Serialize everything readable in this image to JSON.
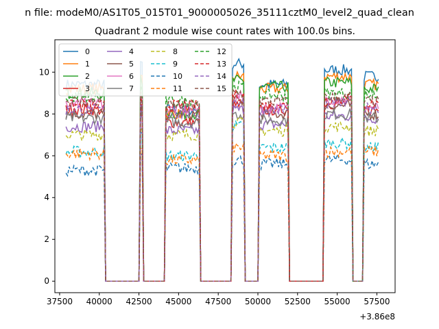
{
  "suptitle": "n file: modeM0/AS1T05_015T01_9000005026_35111cztM0_level2_quad_clean",
  "chart_data": {
    "type": "line",
    "title": "Quadrant 2 module wise count rates with 100.0s bins.",
    "xlabel": "",
    "ylabel": "",
    "x_offset_text": "+3.86e8",
    "xlim": [
      37200,
      58650
    ],
    "ylim": [
      -0.55,
      11.55
    ],
    "xticks": [
      37500,
      40000,
      42500,
      45000,
      47500,
      50000,
      52500,
      55000,
      57500
    ],
    "xtick_labels": [
      "37500",
      "40000",
      "42500",
      "45000",
      "47500",
      "50000",
      "52500",
      "55000",
      "57500"
    ],
    "yticks": [
      0,
      2,
      4,
      6,
      8,
      10
    ],
    "ytick_labels": [
      "0",
      "2",
      "4",
      "6",
      "8",
      "10"
    ],
    "legend_position": "upper left",
    "legend_columns": 4,
    "segments": [
      {
        "start": 37900,
        "end": 40300,
        "down_to": 40400
      },
      {
        "start": 42550,
        "end": 42750,
        "down_to": 42900
      },
      {
        "start": 44200,
        "end": 46300,
        "down_to": 46400
      },
      {
        "start": 48400,
        "end": 49100,
        "down_to": 49200
      },
      {
        "start": 50100,
        "end": 51950,
        "down_to": 52100
      },
      {
        "start": 54200,
        "end": 55900,
        "down_to": 56000
      },
      {
        "start": 56700,
        "end": 57600,
        "down_to": 57600
      }
    ],
    "series": [
      {
        "name": "0",
        "color": "#1f77b4",
        "dash": "solid",
        "segment_levels": [
          9.4,
          10.4,
          8.2,
          10.4,
          9.4,
          10.1,
          9.8
        ]
      },
      {
        "name": "1",
        "color": "#ff7f0e",
        "dash": "solid",
        "segment_levels": [
          9.2,
          10.0,
          8.0,
          9.8,
          9.2,
          9.8,
          9.4
        ]
      },
      {
        "name": "2",
        "color": "#2ca02c",
        "dash": "solid",
        "segment_levels": [
          9.0,
          9.6,
          8.0,
          9.6,
          9.3,
          9.5,
          9.2
        ]
      },
      {
        "name": "3",
        "color": "#d62728",
        "dash": "solid",
        "segment_levels": [
          8.2,
          8.4,
          7.6,
          8.4,
          8.2,
          8.5,
          8.2
        ]
      },
      {
        "name": "4",
        "color": "#9467bd",
        "dash": "solid",
        "segment_levels": [
          7.4,
          8.0,
          7.2,
          8.2,
          7.5,
          7.9,
          7.8
        ]
      },
      {
        "name": "5",
        "color": "#8c564b",
        "dash": "solid",
        "segment_levels": [
          8.0,
          8.2,
          8.0,
          8.6,
          8.0,
          8.4,
          8.0
        ]
      },
      {
        "name": "6",
        "color": "#e377c2",
        "dash": "solid",
        "segment_levels": [
          8.5,
          8.6,
          8.2,
          8.8,
          8.3,
          8.7,
          8.3
        ]
      },
      {
        "name": "7",
        "color": "#7f7f7f",
        "dash": "solid",
        "segment_levels": [
          7.8,
          8.0,
          7.6,
          8.0,
          7.7,
          8.0,
          7.8
        ]
      },
      {
        "name": "8",
        "color": "#bcbd22",
        "dash": "dashed",
        "segment_levels": [
          7.0,
          7.4,
          7.0,
          7.6,
          7.2,
          7.4,
          7.2
        ]
      },
      {
        "name": "9",
        "color": "#17becf",
        "dash": "dashed",
        "segment_levels": [
          6.2,
          7.0,
          6.0,
          7.4,
          6.4,
          6.6,
          6.4
        ]
      },
      {
        "name": "10",
        "color": "#1f77b4",
        "dash": "dashed",
        "segment_levels": [
          5.3,
          6.0,
          5.4,
          5.8,
          5.6,
          5.8,
          5.6
        ]
      },
      {
        "name": "11",
        "color": "#ff7f0e",
        "dash": "dashed",
        "segment_levels": [
          6.1,
          6.4,
          5.8,
          6.4,
          6.0,
          6.2,
          6.2
        ]
      },
      {
        "name": "12",
        "color": "#2ca02c",
        "dash": "dashed",
        "segment_levels": [
          8.8,
          9.2,
          8.6,
          9.3,
          8.9,
          9.0,
          8.9
        ]
      },
      {
        "name": "13",
        "color": "#d62728",
        "dash": "dashed",
        "segment_levels": [
          8.4,
          8.6,
          8.4,
          8.9,
          8.4,
          8.7,
          8.5
        ]
      },
      {
        "name": "14",
        "color": "#9467bd",
        "dash": "dashed",
        "segment_levels": [
          8.2,
          8.4,
          8.0,
          8.6,
          8.2,
          8.5,
          8.3
        ]
      },
      {
        "name": "15",
        "color": "#8c564b",
        "dash": "dashed",
        "segment_levels": [
          8.6,
          8.8,
          8.4,
          9.0,
          8.6,
          8.8,
          8.6
        ]
      }
    ]
  }
}
